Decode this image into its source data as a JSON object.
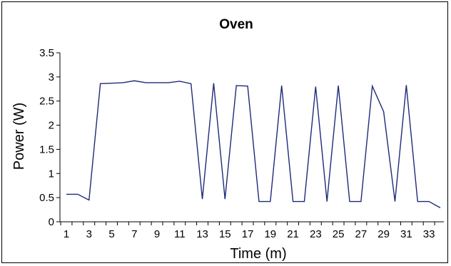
{
  "chart_data": {
    "type": "line",
    "title": "Oven",
    "xlabel": "Time (m)",
    "ylabel": "Power (W)",
    "x": [
      1,
      2,
      3,
      4,
      5,
      6,
      7,
      8,
      9,
      10,
      11,
      12,
      13,
      14,
      15,
      16,
      17,
      18,
      19,
      20,
      21,
      22,
      23,
      24,
      25,
      26,
      27,
      28,
      29,
      30,
      31,
      32,
      33,
      34
    ],
    "x_tick_labels": [
      "1",
      "3",
      "5",
      "7",
      "9",
      "11",
      "13",
      "15",
      "17",
      "19",
      "21",
      "23",
      "25",
      "27",
      "29",
      "31",
      "33"
    ],
    "y_tick_labels": [
      "0",
      "0.5",
      "1",
      "1.5",
      "2",
      "2.5",
      "3",
      "3.5"
    ],
    "ylim": [
      0,
      3.5
    ],
    "grid": false,
    "series": [
      {
        "color": "#1f2a7a",
        "values": [
          0.57,
          0.57,
          0.45,
          2.86,
          2.87,
          2.88,
          2.92,
          2.88,
          2.88,
          2.88,
          2.91,
          2.86,
          0.47,
          2.87,
          0.47,
          2.82,
          2.81,
          0.42,
          0.42,
          2.82,
          0.42,
          0.42,
          2.8,
          0.42,
          2.82,
          0.42,
          0.42,
          2.81,
          2.28,
          0.42,
          2.83,
          0.42,
          0.42,
          0.29
        ]
      }
    ]
  }
}
